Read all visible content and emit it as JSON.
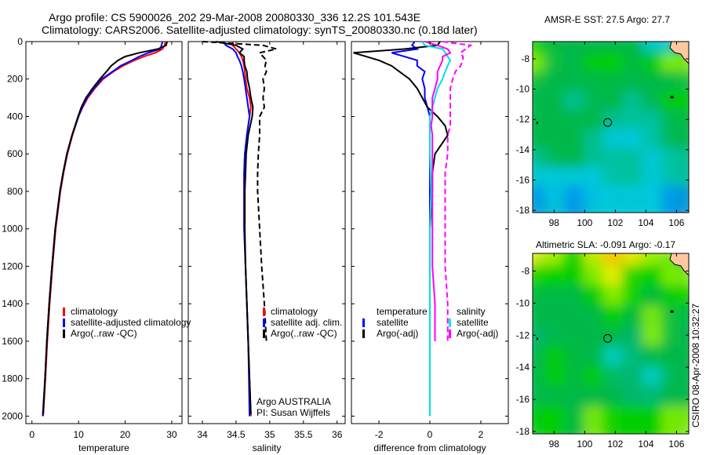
{
  "header": {
    "line1": "Argo profile: CS 5900026_202 29-Mar-2008 20080330_336 12.2S 101.543E",
    "line2": "Climatology: CARS2006. Satellite-adjusted climatology: synTS_20080330.nc (0.18d later)"
  },
  "footer": "CSIRO 08-Apr-2008 10:32:27",
  "colors": {
    "red": "#ff0000",
    "blue": "#0000ff",
    "black": "#000000",
    "magenta": "#ff00ff",
    "cyan": "#00e0e0"
  },
  "chart_data": [
    {
      "type": "line",
      "xlabel": "temperature",
      "ylabel": "",
      "xlim": [
        -1.3,
        32.2
      ],
      "ylim": [
        0,
        2040
      ],
      "yreverse": true,
      "xticks": [
        "0",
        "10",
        "20",
        "30"
      ],
      "yticks": [
        "0",
        "200",
        "400",
        "600",
        "800",
        "1000",
        "1200",
        "1400",
        "1600",
        "1800",
        "2000"
      ],
      "legend": [
        "climatology",
        "satellite-adjusted climatology",
        "Argo(..raw -QC)"
      ],
      "series": [
        {
          "name": "climatology",
          "color": "#ff0000",
          "depth": [
            0,
            20,
            40,
            60,
            80,
            100,
            130,
            160,
            200,
            250,
            300,
            350,
            400,
            500,
            600,
            700,
            800,
            1000,
            1200,
            1400,
            1600,
            1800,
            2000
          ],
          "values": [
            28.6,
            28.5,
            28,
            26.5,
            24,
            22,
            19.5,
            17.5,
            15.3,
            13.5,
            12,
            10.9,
            10,
            8.7,
            7.6,
            6.8,
            6.1,
            5.1,
            4.4,
            3.8,
            3.3,
            2.9,
            2.4
          ]
        },
        {
          "name": "satellite-adjusted climatology",
          "color": "#0000ff",
          "depth": [
            0,
            20,
            40,
            60,
            80,
            100,
            130,
            160,
            200,
            250,
            300,
            350,
            400,
            500,
            600,
            700,
            800,
            1000,
            1200,
            1400,
            1600,
            1800,
            2000
          ],
          "values": [
            28,
            27.8,
            27.5,
            25,
            23,
            21.5,
            19,
            17.3,
            15,
            13.3,
            11.8,
            10.8,
            10,
            8.6,
            7.5,
            6.7,
            6,
            5,
            4.3,
            3.7,
            3.2,
            2.8,
            2.3
          ]
        },
        {
          "name": "Argo(..raw -QC)",
          "color": "#000000",
          "depth": [
            0,
            20,
            40,
            60,
            80,
            100,
            130,
            160,
            200,
            250,
            300,
            350,
            400,
            500,
            600,
            700,
            800,
            1000,
            1200,
            1400,
            1600,
            1800,
            1990
          ],
          "values": [
            29,
            28.8,
            27,
            23,
            20,
            18.5,
            17,
            16,
            14.6,
            13,
            11.6,
            10.6,
            9.9,
            8.6,
            7.5,
            6.7,
            6,
            5,
            4.3,
            3.7,
            3.2,
            2.8,
            2.4
          ]
        }
      ]
    },
    {
      "type": "line",
      "xlabel": "salinity",
      "xlim": [
        33.79,
        36.12
      ],
      "ylim": [
        0,
        2040
      ],
      "yreverse": true,
      "xticks": [
        "34",
        "34.5",
        "35",
        "35.5",
        "36"
      ],
      "legend": [
        "climatology",
        "satellite adj. clim.",
        "Argo(..raw -QC)"
      ],
      "annotation": [
        "Argo AUSTRALIA",
        "PI: Susan Wijffels"
      ],
      "series": [
        {
          "name": "climatology",
          "color": "#ff0000",
          "depth": [
            0,
            20,
            40,
            60,
            80,
            100,
            130,
            160,
            200,
            250,
            300,
            350,
            400,
            500,
            600,
            700,
            800,
            1000,
            1200,
            1400,
            1600,
            1800,
            2000
          ],
          "values": [
            34.45,
            34.45,
            34.5,
            34.55,
            34.58,
            34.6,
            34.62,
            34.63,
            34.64,
            34.66,
            34.7,
            34.72,
            34.7,
            34.66,
            34.63,
            34.62,
            34.62,
            34.62,
            34.64,
            34.66,
            34.68,
            34.7,
            34.72
          ]
        },
        {
          "name": "satellite adj. clim.",
          "color": "#0000ff",
          "depth": [
            0,
            20,
            40,
            60,
            80,
            100,
            130,
            160,
            200,
            250,
            300,
            350,
            400,
            500,
            600,
            700,
            800,
            1000,
            1200,
            1400,
            1600,
            1800,
            2000
          ],
          "values": [
            34.3,
            34.35,
            34.45,
            34.5,
            34.52,
            34.55,
            34.58,
            34.6,
            34.62,
            34.64,
            34.66,
            34.68,
            34.7,
            34.66,
            34.63,
            34.62,
            34.62,
            34.62,
            34.64,
            34.66,
            34.68,
            34.69,
            34.7
          ]
        },
        {
          "name": "Argo",
          "color": "#000000",
          "depth": [
            0,
            20,
            40,
            60,
            80,
            100,
            130,
            160,
            200,
            250,
            300,
            350,
            400,
            500,
            600,
            700,
            800,
            1000,
            1200,
            1400,
            1600,
            1800,
            1990
          ],
          "values": [
            34.2,
            34.5,
            34.6,
            34.55,
            34.62,
            34.62,
            34.63,
            34.66,
            34.67,
            34.7,
            34.72,
            34.75,
            34.74,
            34.68,
            34.65,
            34.64,
            34.63,
            34.63,
            34.64,
            34.66,
            34.68,
            34.7,
            34.72
          ]
        },
        {
          "name": "Argo(..raw -QC)",
          "color": "#000000",
          "dashed": true,
          "depth": [
            0,
            20,
            40,
            60,
            80,
            100,
            130,
            160,
            200,
            250,
            300,
            350,
            400,
            500,
            600,
            700,
            800,
            1000,
            1200,
            1400,
            1600
          ],
          "values": [
            34,
            34.9,
            35.1,
            34.85,
            34.9,
            34.95,
            34.93,
            34.95,
            34.9,
            34.92,
            34.9,
            34.92,
            34.85,
            34.85,
            34.83,
            34.82,
            34.82,
            34.85,
            34.88,
            34.92,
            34.95
          ]
        }
      ]
    },
    {
      "type": "line",
      "xlabel": "difference from climatology",
      "xlim": [
        -3.08,
        3.08
      ],
      "ylim": [
        0,
        2040
      ],
      "yreverse": true,
      "xticks": [
        "-2",
        "0",
        "2"
      ],
      "legend_left": {
        "header": "temperature",
        "items": [
          "satellite",
          "Argo(-adj)"
        ]
      },
      "legend_right": {
        "header": "salinity",
        "items": [
          "satellite",
          "Argo(-adj)"
        ]
      },
      "series": [
        {
          "name": "temperature satellite",
          "color": "#0000ff",
          "depth": [
            0,
            20,
            40,
            60,
            80,
            100,
            130,
            160,
            200,
            250,
            300,
            350,
            400,
            500,
            600,
            800,
            1000,
            1400,
            2000
          ],
          "values": [
            -0.6,
            -0.7,
            -0.5,
            -1.5,
            -1,
            -0.5,
            -0.5,
            -0.2,
            -0.3,
            -0.2,
            -0.2,
            -0.1,
            0,
            0,
            0,
            0,
            0,
            0,
            0
          ]
        },
        {
          "name": "temperature Argo(-adj)",
          "color": "#000000",
          "depth": [
            0,
            20,
            40,
            60,
            80,
            100,
            130,
            160,
            200,
            250,
            300,
            350,
            400,
            450,
            500,
            600,
            700,
            800,
            1000,
            1200,
            1400,
            1600
          ],
          "values": [
            0.4,
            0.3,
            -1,
            -3,
            -2.5,
            -2,
            -1.5,
            -1.2,
            -0.8,
            -0.5,
            -0.3,
            -0.1,
            0.3,
            0.6,
            0.7,
            0.2,
            0.1,
            0.1,
            0,
            0,
            0,
            0
          ]
        },
        {
          "name": "salinity satellite",
          "color": "#00e0e0",
          "depth": [
            0,
            20,
            40,
            60,
            80,
            100,
            130,
            160,
            200,
            250,
            300,
            350,
            400,
            600,
            800,
            1000,
            1400,
            2000
          ],
          "values": [
            -0.3,
            -0.2,
            0.5,
            0.6,
            0.7,
            0.8,
            0.7,
            0.6,
            0.5,
            0.3,
            0.2,
            0.1,
            0,
            0,
            0.05,
            0,
            0,
            0
          ]
        },
        {
          "name": "salinity Argo",
          "color": "#ff00ff",
          "depth": [
            0,
            20,
            40,
            60,
            80,
            100,
            130,
            160,
            200,
            250,
            300,
            350,
            400,
            450,
            500,
            600,
            700,
            800,
            1000,
            1200,
            1400,
            1600
          ],
          "values": [
            -0.2,
            0.3,
            0.7,
            0.8,
            0.5,
            0.5,
            0.4,
            0.3,
            0.3,
            0.2,
            0.1,
            0.1,
            0.1,
            0.05,
            0.1,
            0.1,
            0.1,
            0.1,
            0.1,
            0.1,
            0.2,
            0.2
          ]
        },
        {
          "name": "salinity Argo(-adj)",
          "color": "#ff00ff",
          "dashed": true,
          "depth": [
            0,
            20,
            40,
            60,
            80,
            100,
            130,
            160,
            200,
            250,
            300,
            350,
            400,
            450,
            500,
            600,
            700,
            800,
            1000,
            1200,
            1400,
            1600
          ],
          "values": [
            0.5,
            1.6,
            1.4,
            1.2,
            1.3,
            1.3,
            1.2,
            1,
            0.9,
            0.8,
            0.8,
            0.8,
            0.8,
            0.8,
            0.7,
            0.7,
            0.6,
            0.6,
            0.6,
            0.6,
            0.7,
            0.7
          ]
        }
      ]
    },
    {
      "type": "heatmap",
      "title": "AMSR-E SST: 27.5 Argo: 27.7",
      "xlim": [
        96.6,
        106.8
      ],
      "ylim": [
        -18.15,
        -6.86
      ],
      "xticks": [
        "98",
        "100",
        "102",
        "104",
        "106"
      ],
      "yticks": [
        "-8",
        "-10",
        "-12",
        "-14",
        "-16",
        "-18"
      ],
      "marker": [
        101.5,
        -12.2
      ],
      "palette": [
        "#0090f0",
        "#00c8e0",
        "#00c0a0",
        "#00b848",
        "#00d000",
        "#90f000",
        "#e8f000",
        "#ffc000",
        "#ffc8a0"
      ],
      "grid": [
        [
          4,
          3,
          3,
          3,
          3,
          3,
          1,
          8
        ],
        [
          5,
          3,
          3,
          4,
          4,
          3,
          4,
          5
        ],
        [
          3,
          3,
          3,
          3,
          3,
          3,
          3,
          3
        ],
        [
          3,
          3,
          2,
          3,
          3,
          2,
          3,
          4
        ],
        [
          3,
          3,
          3,
          3,
          2,
          2,
          2,
          3
        ],
        [
          3,
          3,
          3,
          2,
          1,
          1,
          2,
          3
        ],
        [
          2,
          3,
          3,
          2,
          2,
          2,
          1,
          2
        ],
        [
          1,
          1,
          1,
          1,
          2,
          2,
          1,
          2
        ],
        [
          0,
          1,
          0,
          1,
          1,
          1,
          1,
          0
        ]
      ]
    },
    {
      "type": "heatmap",
      "title": "Altimetric SLA: -0.091 Argo: -0.17",
      "xlim": [
        96.6,
        106.8
      ],
      "ylim": [
        -18.15,
        -6.9
      ],
      "xticks": [
        "98",
        "100",
        "102",
        "104",
        "106"
      ],
      "yticks": [
        "-8",
        "-10",
        "-12",
        "-14",
        "-16",
        "-18"
      ],
      "marker": [
        101.5,
        -12.2
      ],
      "palette": [
        "#0090f0",
        "#00d0d0",
        "#00b870",
        "#00b848",
        "#00d000",
        "#90f000",
        "#e8f000",
        "#ffc000",
        "#ffc8a0"
      ],
      "grid": [
        [
          6,
          5,
          4,
          6,
          7,
          6,
          5,
          8
        ],
        [
          4,
          4,
          4,
          5,
          6,
          4,
          4,
          5
        ],
        [
          3,
          3,
          3,
          4,
          5,
          4,
          3,
          4
        ],
        [
          3,
          3,
          3,
          3,
          4,
          3,
          5,
          3
        ],
        [
          2,
          3,
          3,
          3,
          3,
          2,
          5,
          3
        ],
        [
          3,
          4,
          3,
          3,
          1,
          2,
          3,
          3
        ],
        [
          3,
          4,
          3,
          4,
          2,
          2,
          1,
          3
        ],
        [
          3,
          3,
          3,
          3,
          3,
          2,
          2,
          3
        ],
        [
          4,
          4,
          3,
          5,
          4,
          4,
          4,
          5
        ]
      ]
    }
  ]
}
